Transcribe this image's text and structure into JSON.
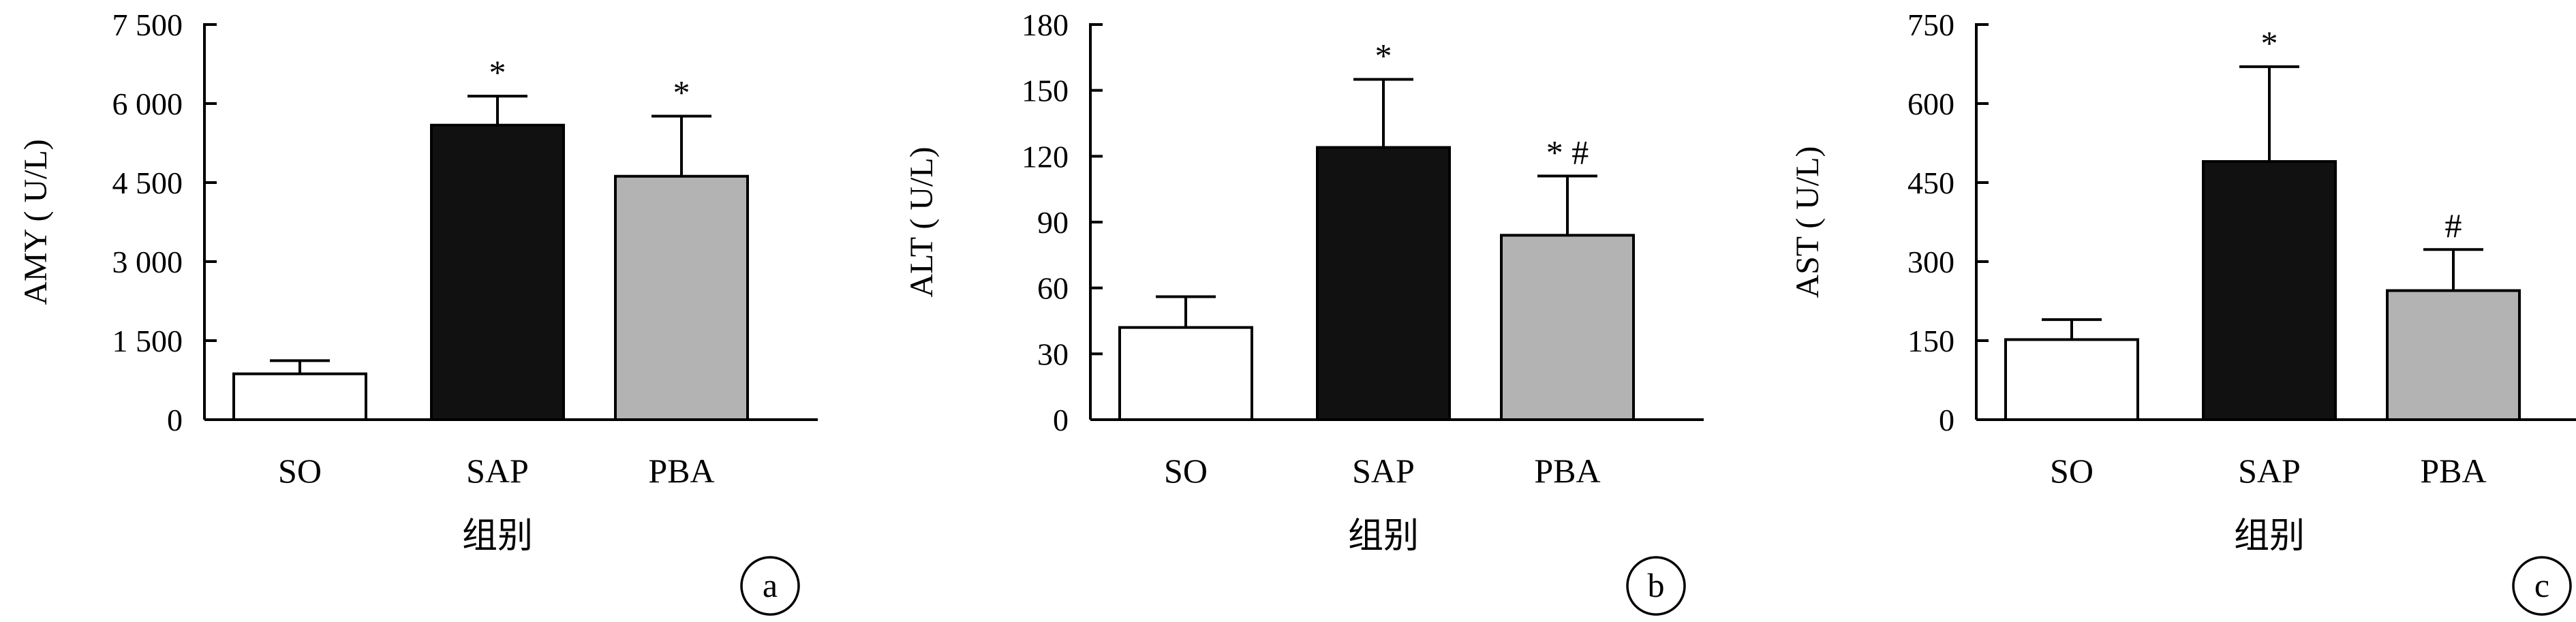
{
  "chart_data": [
    {
      "type": "bar",
      "panel": "a",
      "ylabel": "AMY ( U/L)",
      "xlabel": "组别",
      "ylim": [
        0,
        7500
      ],
      "yticks": [
        0,
        1500,
        3000,
        4500,
        6000,
        7500
      ],
      "ytick_labels": [
        "0",
        "1 500",
        "3 000",
        "4 500",
        "6 000",
        "7 500"
      ],
      "categories": [
        "SO",
        "SAP",
        "PBA"
      ],
      "values": [
        870,
        5590,
        4620
      ],
      "errors": [
        250,
        550,
        1140
      ],
      "annotations": [
        "",
        "*",
        "*"
      ],
      "colors": [
        "#ffffff",
        "#111111",
        "#b3b3b3"
      ]
    },
    {
      "type": "bar",
      "panel": "b",
      "ylabel": "ALT ( U/L)",
      "xlabel": "组别",
      "ylim": [
        0,
        180
      ],
      "yticks": [
        0,
        30,
        60,
        90,
        120,
        150,
        180
      ],
      "ytick_labels": [
        "0",
        "30",
        "60",
        "90",
        "120",
        "150",
        "180"
      ],
      "categories": [
        "SO",
        "SAP",
        "PBA"
      ],
      "values": [
        42,
        124,
        84
      ],
      "errors": [
        14,
        31,
        27
      ],
      "annotations": [
        "",
        "*",
        "* #"
      ],
      "colors": [
        "#ffffff",
        "#111111",
        "#b3b3b3"
      ]
    },
    {
      "type": "bar",
      "panel": "c",
      "ylabel": "AST ( U/L)",
      "xlabel": "组别",
      "ylim": [
        0,
        750
      ],
      "yticks": [
        0,
        150,
        300,
        450,
        600,
        750
      ],
      "ytick_labels": [
        "0",
        "150",
        "300",
        "450",
        "600",
        "750"
      ],
      "categories": [
        "SO",
        "SAP",
        "PBA"
      ],
      "values": [
        152,
        490,
        245
      ],
      "errors": [
        38,
        180,
        78
      ],
      "annotations": [
        "",
        "*",
        "#"
      ],
      "colors": [
        "#ffffff",
        "#111111",
        "#b3b3b3"
      ]
    }
  ]
}
